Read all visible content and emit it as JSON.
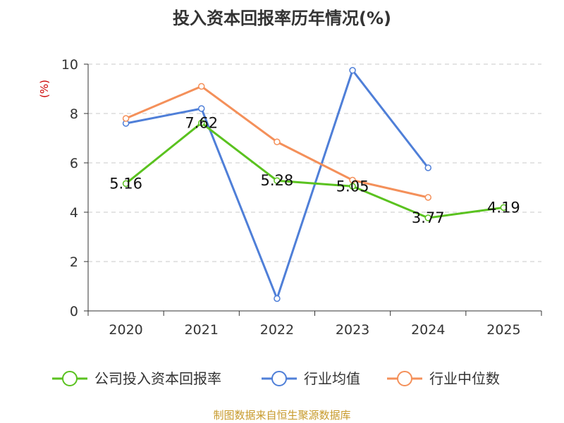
{
  "chart_data": {
    "type": "line",
    "title": "投入资本回报率历年情况(%)",
    "ylabel": "(%)",
    "xlabel": "",
    "categories": [
      "2020",
      "2021",
      "2022",
      "2023",
      "2024",
      "2025"
    ],
    "ylim": [
      0,
      10
    ],
    "yticks": [
      "0",
      "2",
      "4",
      "6",
      "8",
      "10"
    ],
    "grid": true,
    "legend_position": "bottom",
    "series": [
      {
        "name": "公司投入资本回报率",
        "color": "#5ac21f",
        "values": [
          5.16,
          7.62,
          5.28,
          5.05,
          3.77,
          4.19
        ],
        "labels": [
          "5.16",
          "7.62",
          "5.28",
          "5.05",
          "3.77",
          "4.19"
        ]
      },
      {
        "name": "行业均值",
        "color": "#4f7fd8",
        "values": [
          7.6,
          8.2,
          0.5,
          9.75,
          5.8,
          null
        ]
      },
      {
        "name": "行业中位数",
        "color": "#f4905a",
        "values": [
          7.8,
          9.1,
          6.85,
          5.3,
          4.6,
          null
        ]
      }
    ]
  },
  "footer": {
    "source": "制图数据来自恒生聚源数据库"
  }
}
